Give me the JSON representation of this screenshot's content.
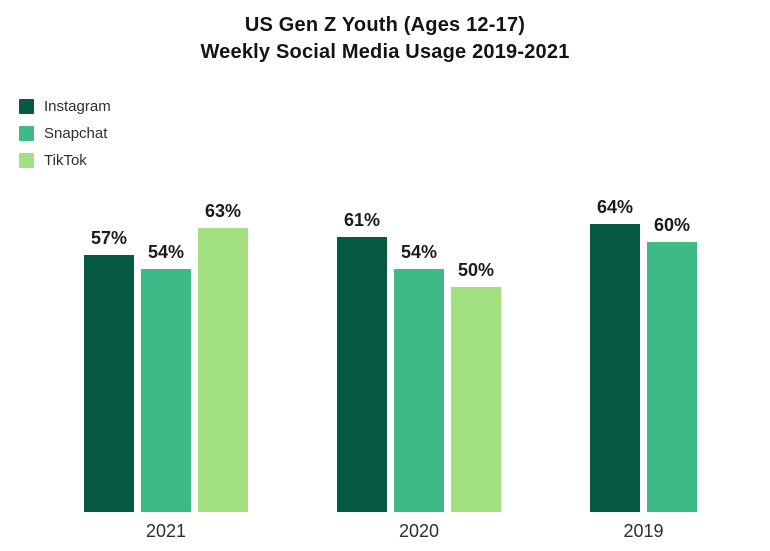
{
  "chart_data": {
    "type": "bar",
    "title": "US Gen Z Youth (Ages 12-17)",
    "subtitle": "Weekly Social Media Usage 2019-2021",
    "unit": "%",
    "categories": [
      "2021",
      "2020",
      "2019"
    ],
    "series": [
      {
        "name": "Instagram",
        "color": "#065943",
        "values": [
          57,
          61,
          64
        ]
      },
      {
        "name": "Snapchat",
        "color": "#3dba85",
        "values": [
          54,
          54,
          60
        ]
      },
      {
        "name": "TikTok",
        "color": "#a2e081",
        "values": [
          63,
          50,
          null
        ]
      }
    ],
    "value_labels": [
      "57%",
      "54%",
      "63%",
      "61%",
      "54%",
      "50%",
      "64%",
      "60%"
    ],
    "legend_position": "top-left",
    "grid": false,
    "axes_hidden": true,
    "ylim": [
      0,
      70
    ],
    "background_color": "#ffffff",
    "text_color": "#1b1b1b"
  }
}
